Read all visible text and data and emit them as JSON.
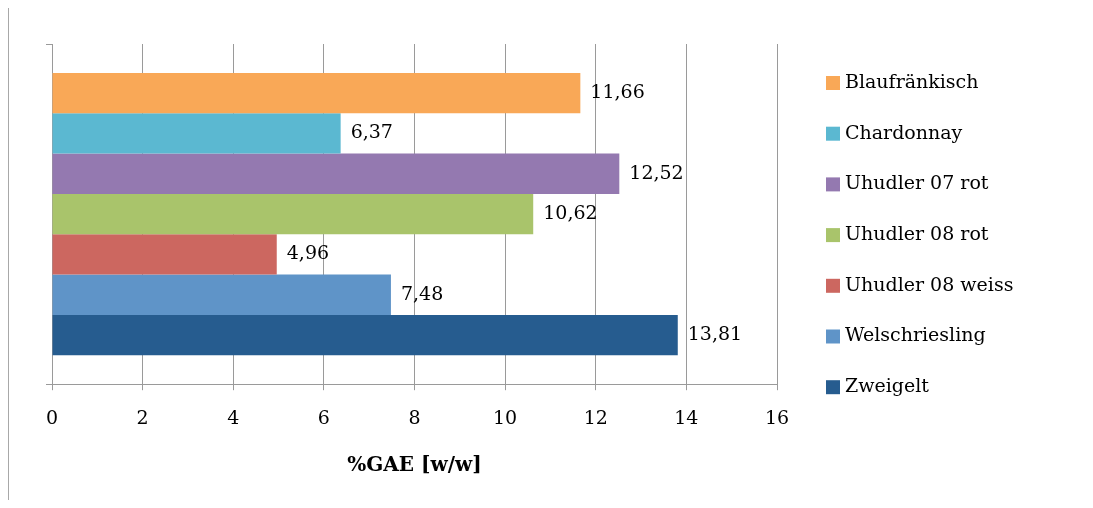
{
  "chart_data": {
    "type": "bar",
    "orientation": "horizontal",
    "xlabel": "%GAE [w/w]",
    "categories": [
      null
    ],
    "series": [
      {
        "name": "Blaufränkisch",
        "color": "#f9a857",
        "values": [
          11.66
        ],
        "value_labels": [
          "11,66"
        ]
      },
      {
        "name": "Chardonnay",
        "color": "#5bb8d1",
        "values": [
          6.37
        ],
        "value_labels": [
          "6,37"
        ]
      },
      {
        "name": "Uhudler 07 rot",
        "color": "#9479b0",
        "values": [
          12.52
        ],
        "value_labels": [
          "12,52"
        ]
      },
      {
        "name": "Uhudler 08 rot",
        "color": "#a9c46b",
        "values": [
          10.62
        ],
        "value_labels": [
          "10,62"
        ]
      },
      {
        "name": "Uhudler 08 weiss",
        "color": "#cc6760",
        "values": [
          4.96
        ],
        "value_labels": [
          "4,96"
        ]
      },
      {
        "name": "Welschriesling",
        "color": "#5f94c8",
        "values": [
          7.48
        ],
        "value_labels": [
          "7,48"
        ]
      },
      {
        "name": "Zweigelt",
        "color": "#265c8f",
        "values": [
          13.81
        ],
        "value_labels": [
          "13,81"
        ]
      }
    ],
    "xlim": [
      0,
      16
    ],
    "xticks": [
      0,
      2,
      4,
      6,
      8,
      10,
      12,
      14,
      16
    ],
    "grid": "x",
    "legend": "right"
  }
}
